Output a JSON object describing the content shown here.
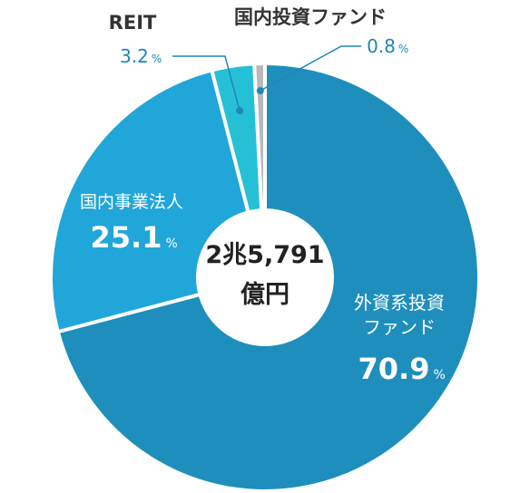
{
  "chart_data": {
    "type": "pie",
    "style": "donut",
    "center_text": [
      "2兆5,791",
      "億円"
    ],
    "percent_unit": "%",
    "slices": [
      {
        "name_lines": [
          "外資系投資",
          "ファンド"
        ],
        "value": 70.9,
        "value_text": "70.9",
        "color": "#1e8fbd",
        "label_color": "#ffffff"
      },
      {
        "name_lines": [
          "国内事業法人"
        ],
        "value": 25.1,
        "value_text": "25.1",
        "color": "#21a6d9",
        "label_color": "#ffffff"
      },
      {
        "name_lines": [
          "REIT"
        ],
        "value": 3.2,
        "value_text": "3.2",
        "color": "#26c0d6",
        "label_color": "#333333",
        "value_color": "#1f86b6"
      },
      {
        "name_lines": [
          "国内投資ファンド"
        ],
        "value": 0.8,
        "value_text": "0.8",
        "color": "#b9b9b9",
        "label_color": "#333333",
        "value_color": "#1f86b6"
      }
    ],
    "callout_color": "#1f86b6"
  }
}
